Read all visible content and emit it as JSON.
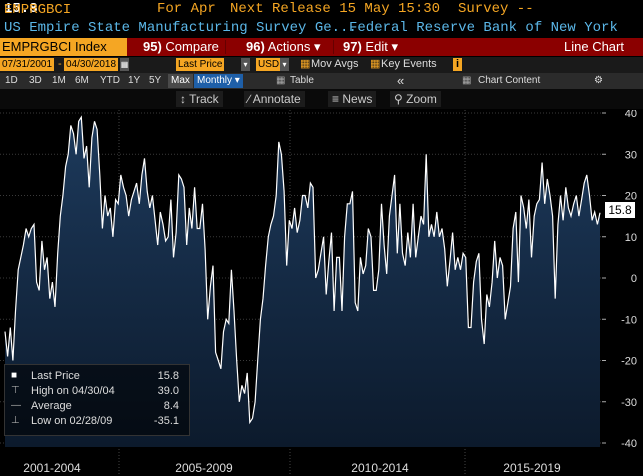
{
  "header": {
    "ticker": "EMPRGBCI",
    "last": "15.8",
    "for_label": "For Apr",
    "next_release": "Next Release 15 May 15:30",
    "survey": "Survey --",
    "title": "US Empire State Manufacturing Survey Ge...",
    "source": "Federal Reserve Bank of New York"
  },
  "toolbar": {
    "security": "EMPRGBCI Index",
    "compare_num": "95)",
    "compare": "Compare",
    "actions_num": "96)",
    "actions": "Actions",
    "edit_num": "97)",
    "edit": "Edit",
    "chart_type": "Line Chart"
  },
  "controls": {
    "start_date": "07/31/2001",
    "end_date": "04/30/2018",
    "field": "Last Price",
    "currency": "USD",
    "mov_avgs": "Mov Avgs",
    "key_events": "Key Events"
  },
  "periods": [
    "1D",
    "3D",
    "1M",
    "6M",
    "YTD",
    "1Y",
    "5Y",
    "Max"
  ],
  "frequency": "Monthly",
  "table_label": "Table",
  "chart_content": "Chart Content",
  "tools": {
    "track": "Track",
    "annotate": "Annotate",
    "news": "News",
    "zoom": "Zoom"
  },
  "legend": [
    {
      "key": "Last Price",
      "value": "15.8"
    },
    {
      "key": "High on 04/30/04",
      "value": "39.0"
    },
    {
      "key": "Average",
      "value": "8.4"
    },
    {
      "key": "Low on 02/28/09",
      "value": "-35.1"
    }
  ],
  "current_label": "15.8",
  "colors": {
    "line": "#ffffff",
    "area_top": "#1d3a5c",
    "area_bottom": "#0c1a2c",
    "accent": "#f5a623",
    "toolbar": "#8b0000"
  },
  "chart_data": {
    "type": "area",
    "title": "US Empire State Manufacturing Survey General Business Conditions",
    "x_range": [
      "2001-07-31",
      "2018-04-30"
    ],
    "ylim": [
      -40,
      40
    ],
    "yticks": [
      -40,
      -30,
      -20,
      -10,
      0,
      10,
      20,
      30,
      40
    ],
    "xtick_labels": [
      "2001-2004",
      "2005-2009",
      "2010-2014",
      "2015-2019"
    ],
    "grid": true,
    "series": [
      {
        "name": "Last Price",
        "frequency": "monthly",
        "start": "2001-07",
        "values": [
          -13,
          -19,
          -12,
          -20,
          -8,
          2,
          5,
          8,
          12,
          10,
          12,
          13,
          -1,
          -3,
          9,
          2,
          5,
          -5,
          -1,
          -7,
          6,
          15,
          20,
          27,
          30,
          37,
          35,
          30,
          38,
          39,
          29,
          32,
          22,
          34,
          38,
          36,
          25,
          12,
          20,
          15,
          17,
          10,
          19,
          18,
          25,
          22,
          20,
          15,
          19,
          21,
          23,
          18,
          25,
          29,
          21,
          17,
          20,
          14,
          8,
          16,
          13,
          9,
          10,
          19,
          5,
          11,
          25,
          24,
          22,
          8,
          17,
          12,
          22,
          12,
          12,
          18,
          7,
          -10,
          -2,
          3,
          -18,
          -20,
          -22,
          -13,
          -10,
          -11,
          2,
          -8,
          -20,
          -30,
          -26,
          -28,
          -23,
          -35,
          -34,
          -30,
          -20,
          -10,
          -5,
          3,
          10,
          13,
          15,
          20,
          33,
          30,
          21,
          3,
          14,
          12,
          17,
          11,
          14,
          20,
          20,
          17,
          23,
          22,
          0,
          2,
          6,
          10,
          -4,
          4,
          11,
          -8,
          5,
          5,
          -8,
          10,
          18,
          18,
          21,
          -6,
          -8,
          5,
          1,
          3,
          12,
          10,
          -3,
          -3,
          2,
          18,
          8,
          1,
          15,
          20,
          25,
          6,
          18,
          6,
          3,
          11,
          5,
          18,
          5,
          10,
          15,
          13,
          30,
          10,
          13,
          10,
          16,
          10,
          12,
          7,
          -2,
          4,
          11,
          2,
          5,
          2,
          6,
          5,
          -12,
          -12,
          -1,
          4,
          6,
          -10,
          -16,
          -4,
          -7,
          -1,
          9,
          0,
          5,
          3,
          -10,
          -6,
          -2,
          12,
          16,
          -1,
          20,
          17,
          12,
          19,
          5,
          15,
          18,
          19,
          28,
          18,
          24,
          20,
          15,
          -5,
          13,
          20,
          14,
          22,
          17,
          15,
          18,
          20,
          15,
          19,
          23,
          25,
          20,
          14,
          16,
          13,
          15.8
        ]
      }
    ]
  }
}
